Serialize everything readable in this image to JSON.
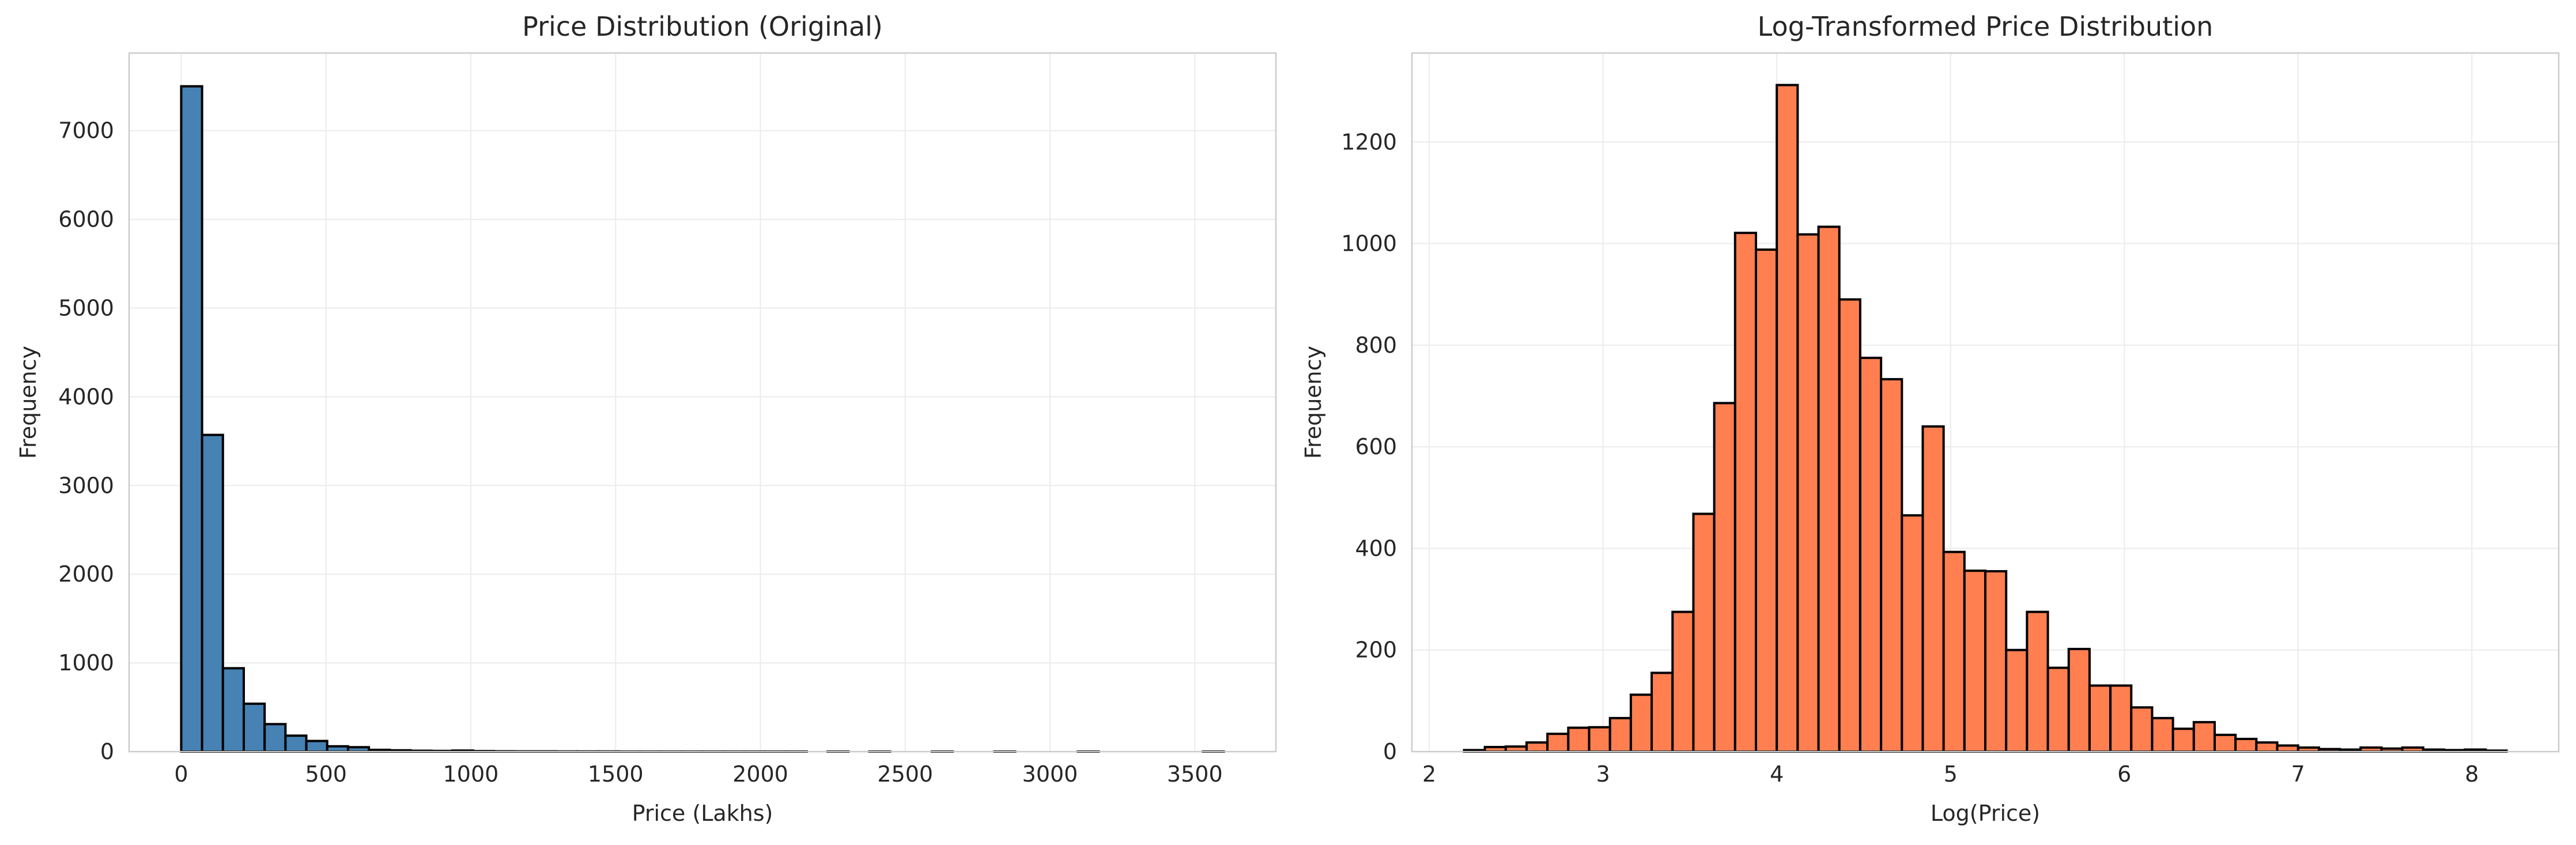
{
  "colors": {
    "left_bar_fill": "#4682b4",
    "right_bar_fill": "#ff7f50",
    "bar_edge": "#000000",
    "grid": "#ebebeb",
    "axes_frame": "#cccccc",
    "text": "#262626"
  },
  "chart_data": [
    {
      "type": "bar",
      "title": "Price Distribution (Original)",
      "xlabel": "Price (Lakhs)",
      "ylabel": "Frequency",
      "xlim": [
        -180,
        3780
      ],
      "ylim": [
        0,
        7875
      ],
      "xticks": [
        0,
        500,
        1000,
        1500,
        2000,
        2500,
        3000,
        3500
      ],
      "xtick_labels": [
        "0",
        "500",
        "1000",
        "1500",
        "2000",
        "2500",
        "3000",
        "3500"
      ],
      "yticks": [
        0,
        1000,
        2000,
        3000,
        4000,
        5000,
        6000,
        7000
      ],
      "ytick_labels": [
        "0",
        "1000",
        "2000",
        "3000",
        "4000",
        "5000",
        "6000",
        "7000"
      ],
      "grid": true,
      "bin_start": 0,
      "bin_width": 72,
      "values": [
        7500,
        3570,
        940,
        540,
        310,
        180,
        120,
        60,
        50,
        20,
        15,
        10,
        8,
        12,
        6,
        4,
        3,
        3,
        2,
        2,
        2,
        1,
        1,
        1,
        1,
        1,
        1,
        1,
        1,
        1,
        0,
        1,
        0,
        1,
        0,
        0,
        1,
        0,
        0,
        1,
        0,
        0,
        0,
        1,
        0,
        0,
        0,
        0,
        0,
        1
      ]
    },
    {
      "type": "bar",
      "title": "Log-Transformed Price Distribution",
      "xlabel": "Log(Price)",
      "ylabel": "Frequency",
      "xlim": [
        1.9,
        8.5
      ],
      "ylim": [
        0,
        1375
      ],
      "xticks": [
        2,
        3,
        4,
        5,
        6,
        7,
        8
      ],
      "xtick_labels": [
        "2",
        "3",
        "4",
        "5",
        "6",
        "7",
        "8"
      ],
      "yticks": [
        0,
        200,
        400,
        600,
        800,
        1000,
        1200
      ],
      "ytick_labels": [
        "0",
        "200",
        "400",
        "600",
        "800",
        "1000",
        "1200"
      ],
      "grid": true,
      "bin_start": 2.2,
      "bin_width": 0.12,
      "values": [
        3,
        9,
        10,
        18,
        35,
        47,
        48,
        66,
        112,
        155,
        275,
        468,
        686,
        1021,
        988,
        1312,
        1018,
        1033,
        890,
        775,
        733,
        465,
        640,
        393,
        356,
        355,
        200,
        275,
        165,
        202,
        130,
        130,
        87,
        66,
        45,
        58,
        33,
        25,
        18,
        12,
        8,
        5,
        4,
        8,
        6,
        8,
        4,
        3,
        4,
        2
      ]
    }
  ]
}
